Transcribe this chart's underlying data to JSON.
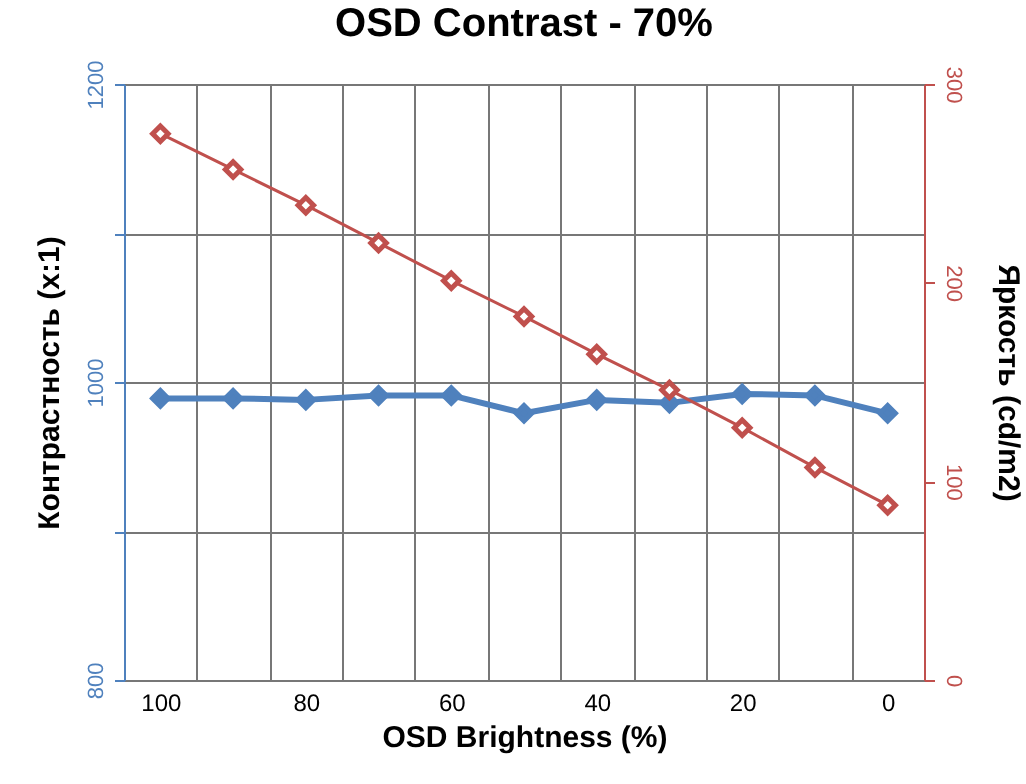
{
  "chart_data": {
    "type": "line",
    "title": "OSD Contrast - 70%",
    "xlabel": "OSD Brightness (%)",
    "ylabel": "Контрастность (x:1)",
    "y2label": "Яркость (cd/m2)",
    "categories": [
      "100",
      null,
      "80",
      null,
      "60",
      null,
      "40",
      null,
      "20",
      null,
      "0"
    ],
    "series": [
      {
        "color": "#4f81bd",
        "values": [
          989,
          989,
          988,
          991,
          991,
          979,
          988,
          986,
          992,
          991,
          979
        ]
      },
      {
        "color": "#c0504d",
        "axis": "y2",
        "values": [
          275,
          257,
          239,
          220,
          201,
          183,
          164,
          146,
          127,
          107,
          88
        ]
      }
    ],
    "ylim": [
      800,
      1200
    ],
    "yticks": [
      800,
      {
        "value": 900,
        "label": null
      },
      1000,
      {
        "value": 1100,
        "label": null
      },
      1200
    ],
    "y2lim": [
      0,
      300
    ],
    "y2ticks": [
      0,
      100,
      200,
      300
    ],
    "grid": true,
    "marker": "diamond"
  }
}
